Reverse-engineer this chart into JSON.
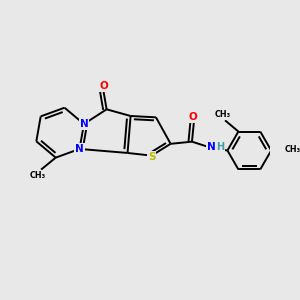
{
  "background_color": "#e8e8e8",
  "atoms": {
    "C": "#000000",
    "N": "#0000ff",
    "O": "#ff0000",
    "S": "#bbbb00",
    "H": "#40a0a0"
  },
  "bond_color": "#000000",
  "bond_width": 1.4,
  "figsize": [
    3.0,
    3.0
  ],
  "dpi": 100,
  "xlim": [
    0,
    10
  ],
  "ylim": [
    0,
    10
  ]
}
